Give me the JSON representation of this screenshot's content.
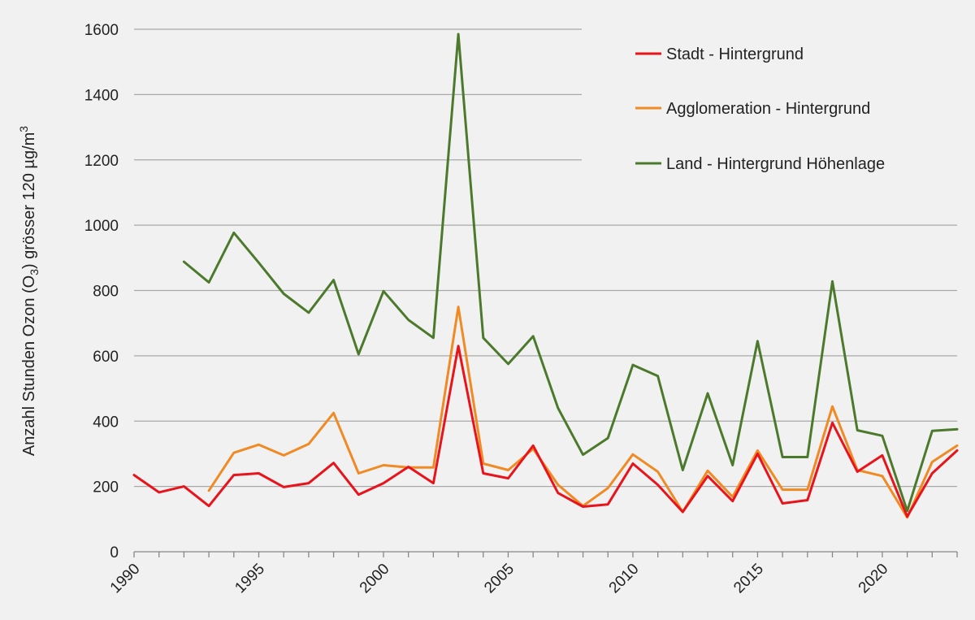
{
  "chart_data": {
    "type": "line",
    "ylabel_main": "Anzahl Stunden Ozon (O",
    "ylabel_sub": "3",
    "ylabel_tail": ") grösser 120 µg/m",
    "ylabel_sup": "3",
    "xlabel": "",
    "ylim": [
      0,
      1600
    ],
    "xlim": [
      1990,
      2023
    ],
    "yticks": [
      "0",
      "200",
      "400",
      "600",
      "800",
      "1000",
      "1200",
      "1400",
      "1600"
    ],
    "xticks": [
      "1990",
      "1995",
      "2000",
      "2005",
      "2010",
      "2015",
      "2020"
    ],
    "grid": true,
    "legend_position": "top-right",
    "series": [
      {
        "name": "Stadt - Hintergrund",
        "color": "#e8141b",
        "x": [
          1990,
          1991,
          1992,
          1993,
          1994,
          1995,
          1996,
          1997,
          1998,
          1999,
          2000,
          2001,
          2002,
          2003,
          2004,
          2005,
          2006,
          2007,
          2008,
          2009,
          2010,
          2011,
          2012,
          2013,
          2014,
          2015,
          2016,
          2017,
          2018,
          2019,
          2020,
          2021,
          2022,
          2023
        ],
        "values": [
          235,
          182,
          200,
          140,
          235,
          240,
          198,
          210,
          272,
          175,
          210,
          260,
          210,
          630,
          240,
          225,
          325,
          180,
          138,
          145,
          270,
          205,
          122,
          232,
          155,
          300,
          148,
          158,
          395,
          245,
          295,
          108,
          240,
          310
        ]
      },
      {
        "name": "Agglomeration - Hintergrund",
        "color": "#f08a24",
        "x": [
          1993,
          1994,
          1995,
          1996,
          1997,
          1998,
          1999,
          2000,
          2001,
          2002,
          2003,
          2004,
          2005,
          2006,
          2007,
          2008,
          2009,
          2010,
          2011,
          2012,
          2013,
          2014,
          2015,
          2016,
          2017,
          2018,
          2019,
          2020,
          2021,
          2022,
          2023
        ],
        "values": [
          187,
          303,
          328,
          295,
          330,
          425,
          240,
          265,
          258,
          258,
          750,
          270,
          250,
          315,
          205,
          140,
          195,
          298,
          245,
          122,
          248,
          168,
          310,
          190,
          190,
          445,
          250,
          232,
          105,
          275,
          325
        ]
      },
      {
        "name": "Land - Hintergrund Höhenlage",
        "color": "#4c7a2c",
        "x": [
          1992,
          1993,
          1994,
          1995,
          1996,
          1997,
          1998,
          1999,
          2000,
          2001,
          2002,
          2003,
          2004,
          2005,
          2006,
          2007,
          2008,
          2009,
          2010,
          2011,
          2012,
          2013,
          2014,
          2015,
          2016,
          2017,
          2018,
          2019,
          2020,
          2021,
          2022,
          2023
        ],
        "values": [
          888,
          825,
          977,
          885,
          790,
          732,
          832,
          605,
          798,
          710,
          655,
          1585,
          655,
          575,
          660,
          440,
          297,
          348,
          572,
          538,
          250,
          485,
          265,
          645,
          290,
          290,
          828,
          372,
          355,
          125,
          370,
          375
        ]
      }
    ]
  }
}
